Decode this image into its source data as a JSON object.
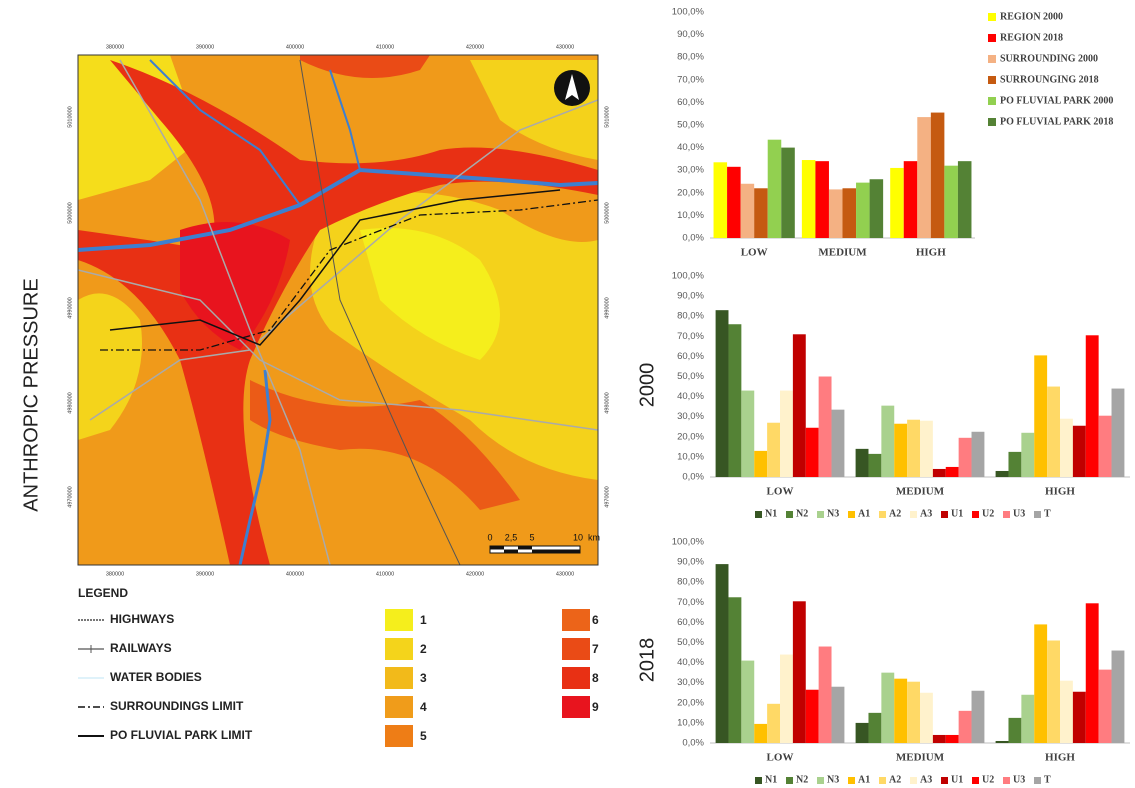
{
  "figure": {
    "main_label": "ANTHROPIC PRESSURE"
  },
  "map": {
    "x_labels": [
      "380000",
      "390000",
      "400000",
      "410000",
      "420000",
      "430000"
    ],
    "y_labels": [
      "5010000",
      "5000000",
      "4990000",
      "4980000",
      "4970000"
    ],
    "scale_labels": [
      "0",
      "2,5",
      "5",
      "10",
      "km"
    ],
    "legend_title": "LEGEND",
    "legend_items": [
      "HIGHWAYS",
      "RAILWAYS",
      "WATER BODIES",
      "SURROUNDINGS LIMIT",
      "PO FLUVIAL PARK LIMIT"
    ],
    "classes": [
      {
        "label": "1",
        "color": "#f5ee1c"
      },
      {
        "label": "2",
        "color": "#f4d41b"
      },
      {
        "label": "3",
        "color": "#f2ba1a"
      },
      {
        "label": "4",
        "color": "#f09c1a"
      },
      {
        "label": "5",
        "color": "#ee7d16"
      },
      {
        "label": "6",
        "color": "#ec6419"
      },
      {
        "label": "7",
        "color": "#ea4b16"
      },
      {
        "label": "8",
        "color": "#e83014"
      },
      {
        "label": "9",
        "color": "#e8141e"
      }
    ]
  },
  "chart_data": [
    {
      "type": "bar",
      "legend": "right",
      "categories": [
        "LOW",
        "MEDIUM",
        "HIGH"
      ],
      "ylim": [
        0,
        100
      ],
      "yticks": [
        {
          "value": 0,
          "label": "0,0%"
        },
        {
          "value": 10,
          "label": "10,0%"
        },
        {
          "value": 20,
          "label": "20,0%"
        },
        {
          "value": 30,
          "label": "30,0%"
        },
        {
          "value": 40,
          "label": "40,0%"
        },
        {
          "value": 50,
          "label": "50,0%"
        },
        {
          "value": 60,
          "label": "60,0%"
        },
        {
          "value": 70,
          "label": "70,0%"
        },
        {
          "value": 80,
          "label": "80,0%"
        },
        {
          "value": 90,
          "label": "90,0%"
        },
        {
          "value": 100,
          "label": "100,0%"
        }
      ],
      "series": [
        {
          "name": "REGION 2000",
          "color": "#ffff00",
          "values": [
            33.5,
            34.5,
            31
          ]
        },
        {
          "name": "REGION 2018",
          "color": "#ff0000",
          "values": [
            31.5,
            34,
            34
          ]
        },
        {
          "name": "SURROUNDING 2000",
          "color": "#f4b183",
          "values": [
            24,
            21.5,
            53.5
          ]
        },
        {
          "name": "SURROUNGING 2018",
          "color": "#c55a11",
          "values": [
            22,
            22,
            55.5
          ]
        },
        {
          "name": "PO FLUVIAL PARK 2000",
          "color": "#92d050",
          "values": [
            43.5,
            24.5,
            32
          ]
        },
        {
          "name": "PO FLUVIAL PARK 2018",
          "color": "#548235",
          "values": [
            40,
            26,
            34
          ]
        }
      ]
    },
    {
      "type": "bar",
      "legend": "bottom",
      "side_label": "2000",
      "categories": [
        "LOW",
        "MEDIUM",
        "HIGH"
      ],
      "ylim": [
        0,
        100
      ],
      "yticks": [
        {
          "value": 0,
          "label": "0,0%"
        },
        {
          "value": 10,
          "label": "10,0%"
        },
        {
          "value": 20,
          "label": "20,0%"
        },
        {
          "value": 30,
          "label": "30,0%"
        },
        {
          "value": 40,
          "label": "40,0%"
        },
        {
          "value": 50,
          "label": "50,0%"
        },
        {
          "value": 60,
          "label": "60,0%"
        },
        {
          "value": 70,
          "label": "70,0%"
        },
        {
          "value": 80,
          "label": "80,0%"
        },
        {
          "value": 90,
          "label": "90,0%"
        },
        {
          "value": 100,
          "label": "100,0%"
        }
      ],
      "series": [
        {
          "name": "N1",
          "color": "#375623",
          "values": [
            83,
            14,
            3
          ]
        },
        {
          "name": "N2",
          "color": "#548235",
          "values": [
            76,
            11.5,
            12.5
          ]
        },
        {
          "name": "N3",
          "color": "#a9d18e",
          "values": [
            43,
            35.5,
            22
          ]
        },
        {
          "name": "A1",
          "color": "#ffc000",
          "values": [
            13,
            26.5,
            60.5
          ]
        },
        {
          "name": "A2",
          "color": "#ffd966",
          "values": [
            27,
            28.5,
            45
          ]
        },
        {
          "name": "A3",
          "color": "#fff2cc",
          "values": [
            43,
            28,
            29
          ]
        },
        {
          "name": "U1",
          "color": "#c00000",
          "values": [
            71,
            4,
            25.5
          ]
        },
        {
          "name": "U2",
          "color": "#ff0000",
          "values": [
            24.5,
            5,
            70.5
          ]
        },
        {
          "name": "U3",
          "color": "#ff7c80",
          "values": [
            50,
            19.5,
            30.5
          ]
        },
        {
          "name": "T",
          "color": "#a5a5a5",
          "values": [
            33.5,
            22.5,
            44
          ]
        }
      ]
    },
    {
      "type": "bar",
      "legend": "bottom",
      "side_label": "2018",
      "categories": [
        "LOW",
        "MEDIUM",
        "HIGH"
      ],
      "ylim": [
        0,
        100
      ],
      "yticks": [
        {
          "value": 0,
          "label": "0,0%"
        },
        {
          "value": 10,
          "label": "10,0%"
        },
        {
          "value": 20,
          "label": "20,0%"
        },
        {
          "value": 30,
          "label": "30,0%"
        },
        {
          "value": 40,
          "label": "40,0%"
        },
        {
          "value": 50,
          "label": "50,0%"
        },
        {
          "value": 60,
          "label": "60,0%"
        },
        {
          "value": 70,
          "label": "70,0%"
        },
        {
          "value": 80,
          "label": "80,0%"
        },
        {
          "value": 90,
          "label": "90,0%"
        },
        {
          "value": 100,
          "label": "100,0%"
        }
      ],
      "series": [
        {
          "name": "N1",
          "color": "#375623",
          "values": [
            89,
            10,
            1
          ]
        },
        {
          "name": "N2",
          "color": "#548235",
          "values": [
            72.5,
            15,
            12.5
          ]
        },
        {
          "name": "N3",
          "color": "#a9d18e",
          "values": [
            41,
            35,
            24
          ]
        },
        {
          "name": "A1",
          "color": "#ffc000",
          "values": [
            9.5,
            32,
            59
          ]
        },
        {
          "name": "A2",
          "color": "#ffd966",
          "values": [
            19.5,
            30.5,
            51
          ]
        },
        {
          "name": "A3",
          "color": "#fff2cc",
          "values": [
            44,
            25,
            31
          ]
        },
        {
          "name": "U1",
          "color": "#c00000",
          "values": [
            70.5,
            4,
            25.5
          ]
        },
        {
          "name": "U2",
          "color": "#ff0000",
          "values": [
            26.5,
            4,
            69.5
          ]
        },
        {
          "name": "U3",
          "color": "#ff7c80",
          "values": [
            48,
            16,
            36.5
          ]
        },
        {
          "name": "T",
          "color": "#a5a5a5",
          "values": [
            28,
            26,
            46
          ]
        }
      ]
    }
  ]
}
